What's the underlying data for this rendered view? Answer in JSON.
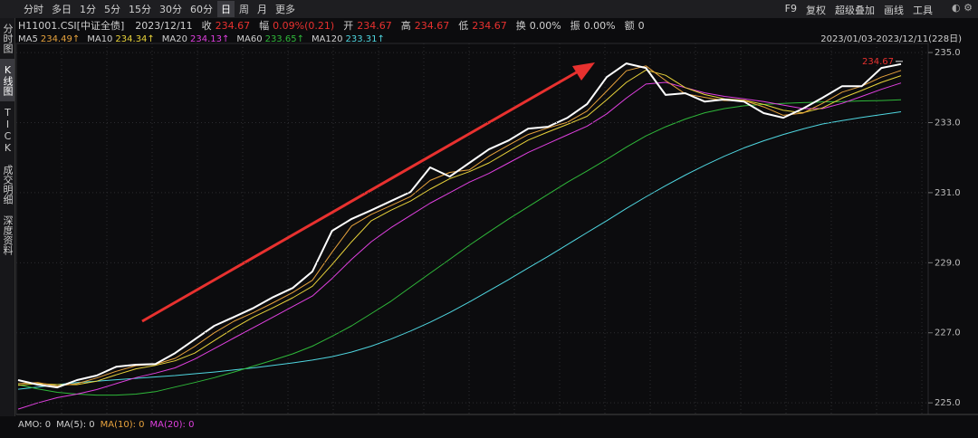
{
  "toolbar": {
    "periods": [
      {
        "label": "分时"
      },
      {
        "label": "多日"
      },
      {
        "label": "1分"
      },
      {
        "label": "5分"
      },
      {
        "label": "15分"
      },
      {
        "label": "30分"
      },
      {
        "label": "60分"
      },
      {
        "label": "日",
        "active": true
      },
      {
        "label": "周"
      },
      {
        "label": "月"
      },
      {
        "label": "更多"
      }
    ],
    "tools": [
      "F9",
      "复权",
      "超级叠加",
      "画线",
      "工具"
    ]
  },
  "info": {
    "symbol": "H11001.CSI[中证全债]",
    "date": "2023/12/11",
    "fields": [
      {
        "label": "收",
        "value": "234.67",
        "color": "#e8312f"
      },
      {
        "label": "幅",
        "value": "0.09%(0.21)",
        "color": "#e8312f"
      },
      {
        "label": "开",
        "value": "234.67",
        "color": "#e8312f"
      },
      {
        "label": "高",
        "value": "234.67",
        "color": "#e8312f"
      },
      {
        "label": "低",
        "value": "234.67",
        "color": "#e8312f"
      },
      {
        "label": "换",
        "value": "0.00%",
        "color": "#d0d0d0"
      },
      {
        "label": "振",
        "value": "0.00%",
        "color": "#d0d0d0"
      },
      {
        "label": "额",
        "value": "0",
        "color": "#d0d0d0"
      }
    ]
  },
  "sidebar": [
    {
      "label": "分时图"
    },
    {
      "label": "K线图",
      "active": true
    },
    {
      "label": "TICK"
    },
    {
      "label": "成交明细"
    },
    {
      "label": "深度资料"
    }
  ],
  "indicator": [
    {
      "label": "AMO: 0",
      "color": "#d0d0d0"
    },
    {
      "label": "MA(5): 0",
      "color": "#d0d0d0"
    },
    {
      "label": "MA(10): 0",
      "color": "#e8a33d"
    },
    {
      "label": "MA(20): 0",
      "color": "#e040e0"
    }
  ],
  "chart_data": {
    "type": "line",
    "range_label": "2023/01/03-2023/12/11(228日)",
    "categories": [
      null,
      null,
      null,
      null,
      null,
      null,
      null,
      null,
      null,
      null,
      null,
      null,
      null,
      null,
      null,
      null,
      null,
      null,
      null,
      null,
      null,
      null,
      null,
      null,
      null,
      null,
      null,
      null,
      null,
      null,
      null,
      null,
      null,
      null,
      null,
      null,
      null,
      null,
      null,
      null,
      null,
      null,
      null,
      null,
      null,
      null
    ],
    "ylim": [
      224.72,
      235.26
    ],
    "yticks": [
      {
        "value": 225,
        "label": "225.0"
      },
      {
        "value": 227,
        "label": "227.0"
      },
      {
        "value": 229,
        "label": "229.0"
      },
      {
        "value": 231,
        "label": "231.0"
      },
      {
        "value": 233,
        "label": "233.0"
      },
      {
        "value": 235,
        "label": "235.0"
      }
    ],
    "grid": true,
    "series": [
      {
        "color": "#ffffff",
        "width": 2,
        "values": [
          225.65,
          225.52,
          225.44,
          225.65,
          225.78,
          226.03,
          226.09,
          226.11,
          226.42,
          226.81,
          227.2,
          227.45,
          227.71,
          228.02,
          228.28,
          228.75,
          229.91,
          230.25,
          230.5,
          230.76,
          231.02,
          231.72,
          231.46,
          231.85,
          232.24,
          232.49,
          232.83,
          232.88,
          233.14,
          233.53,
          234.3,
          234.69,
          234.56,
          233.79,
          233.84,
          233.6,
          233.66,
          233.6,
          233.27,
          233.14,
          233.4,
          233.71,
          234.04,
          234.04,
          234.56,
          234.67
        ]
      },
      {
        "name": "MA5",
        "color": "#e8a33d",
        "legend_label": "234.49↑",
        "width": 1,
        "values": [
          225.55,
          225.58,
          225.48,
          225.55,
          225.71,
          225.9,
          226.06,
          226.1,
          226.27,
          226.61,
          227.0,
          227.33,
          227.58,
          227.86,
          228.15,
          228.5,
          229.3,
          230.05,
          230.38,
          230.63,
          230.89,
          231.35,
          231.58,
          231.65,
          232.04,
          232.36,
          232.66,
          232.85,
          233.01,
          233.33,
          233.9,
          234.48,
          234.62,
          234.2,
          233.82,
          233.72,
          233.63,
          233.63,
          233.45,
          233.21,
          233.27,
          233.55,
          233.87,
          234.04,
          234.3,
          234.49
        ]
      },
      {
        "name": "MA10",
        "color": "#e8d23a",
        "legend_label": "234.34↑",
        "width": 1,
        "values": [
          225.5,
          225.55,
          225.52,
          225.52,
          225.62,
          225.8,
          225.97,
          226.07,
          226.2,
          226.42,
          226.78,
          227.13,
          227.45,
          227.72,
          228.0,
          228.33,
          228.95,
          229.6,
          230.2,
          230.5,
          230.76,
          231.1,
          231.4,
          231.6,
          231.85,
          232.18,
          232.5,
          232.73,
          232.95,
          233.18,
          233.65,
          234.15,
          234.5,
          234.35,
          234.0,
          233.8,
          233.68,
          233.64,
          233.52,
          233.35,
          233.28,
          233.42,
          233.7,
          233.92,
          234.15,
          234.34
        ]
      },
      {
        "name": "MA20",
        "color": "#e040e0",
        "legend_label": "234.13↑",
        "width": 1,
        "values": [
          224.82,
          225.0,
          225.15,
          225.25,
          225.38,
          225.55,
          225.72,
          225.85,
          226.0,
          226.25,
          226.55,
          226.85,
          227.15,
          227.45,
          227.75,
          228.05,
          228.55,
          229.1,
          229.6,
          230.0,
          230.35,
          230.7,
          231.0,
          231.3,
          231.55,
          231.85,
          232.15,
          232.4,
          232.65,
          232.9,
          233.25,
          233.7,
          234.1,
          234.15,
          234.0,
          233.85,
          233.75,
          233.68,
          233.6,
          233.5,
          233.4,
          233.4,
          233.55,
          233.75,
          233.95,
          234.13
        ]
      },
      {
        "name": "MA60",
        "color": "#2fb83a",
        "legend_label": "233.65↑",
        "width": 1,
        "values": [
          225.52,
          225.4,
          225.3,
          225.25,
          225.22,
          225.22,
          225.25,
          225.32,
          225.45,
          225.58,
          225.72,
          225.88,
          226.05,
          226.22,
          226.4,
          226.62,
          226.9,
          227.2,
          227.55,
          227.9,
          228.3,
          228.7,
          229.1,
          229.5,
          229.88,
          230.25,
          230.6,
          230.95,
          231.3,
          231.62,
          231.95,
          232.3,
          232.62,
          232.88,
          233.1,
          233.28,
          233.4,
          233.48,
          233.52,
          233.55,
          233.57,
          233.59,
          233.6,
          233.62,
          233.63,
          233.65
        ]
      },
      {
        "name": "MA120",
        "color": "#4fd6e0",
        "legend_label": "233.31↑",
        "width": 1,
        "values": [
          225.39,
          225.45,
          225.52,
          225.58,
          225.62,
          225.66,
          225.7,
          225.74,
          225.78,
          225.83,
          225.88,
          225.94,
          226.0,
          226.07,
          226.14,
          226.22,
          226.32,
          226.45,
          226.62,
          226.82,
          227.05,
          227.3,
          227.58,
          227.88,
          228.2,
          228.52,
          228.85,
          229.18,
          229.52,
          229.86,
          230.2,
          230.55,
          230.88,
          231.2,
          231.5,
          231.78,
          232.04,
          232.28,
          232.48,
          232.66,
          232.82,
          232.96,
          233.06,
          233.15,
          233.23,
          233.31
        ]
      }
    ]
  }
}
